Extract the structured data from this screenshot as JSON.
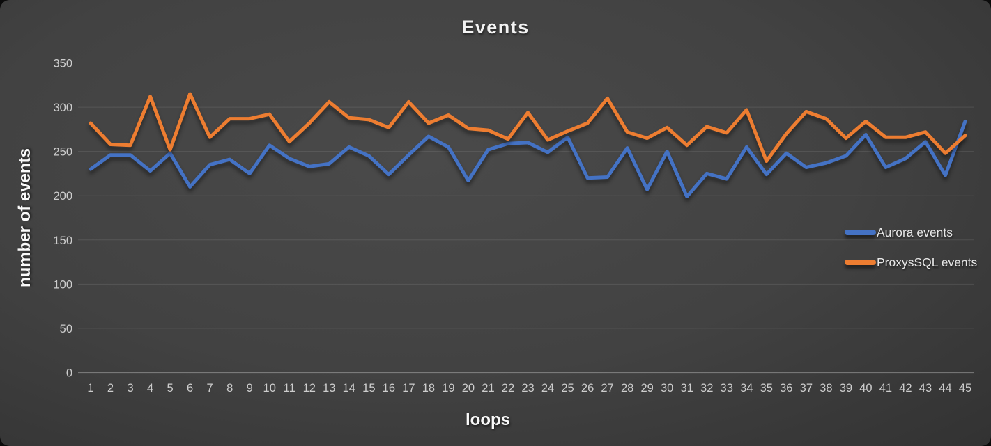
{
  "title": "Events",
  "axes": {
    "x_label": "loops",
    "y_label": "number of events",
    "y_ticks": [
      0,
      50,
      100,
      150,
      200,
      250,
      300,
      350
    ]
  },
  "legend": {
    "items": [
      {
        "label": "Aurora events",
        "color": "#4472C4"
      },
      {
        "label": "ProxysSQL events",
        "color": "#ED7D31"
      }
    ],
    "position": "right-middle"
  },
  "colors": {
    "aurora_blue": "#4472C4",
    "proxysql_orange": "#ED7D31",
    "background_center": "#4a4a4a",
    "background_edge": "#222222",
    "tick_text": "#cdcdcd",
    "title_text": "#f2f2f2"
  },
  "chart_data": {
    "type": "line",
    "title": "Events",
    "xlabel": "loops",
    "ylabel": "number of events",
    "ylim": [
      0,
      350
    ],
    "grid": true,
    "legend_position": "right-middle",
    "x": [
      1,
      2,
      3,
      4,
      5,
      6,
      7,
      8,
      9,
      10,
      11,
      12,
      13,
      14,
      15,
      16,
      17,
      18,
      19,
      20,
      21,
      22,
      23,
      24,
      25,
      26,
      27,
      28,
      29,
      30,
      31,
      32,
      33,
      34,
      35,
      36,
      37,
      38,
      39,
      40,
      41,
      42,
      43,
      44,
      45
    ],
    "series": [
      {
        "name": "Aurora events",
        "color": "#4472C4",
        "values": [
          230,
          246,
          246,
          228,
          248,
          210,
          235,
          241,
          225,
          257,
          242,
          233,
          236,
          255,
          245,
          224,
          246,
          267,
          255,
          217,
          252,
          259,
          260,
          249,
          266,
          220,
          221,
          254,
          207,
          250,
          199,
          225,
          219,
          255,
          224,
          248,
          232,
          237,
          245,
          269,
          232,
          242,
          261,
          223,
          284
        ]
      },
      {
        "name": "ProxysSQL events",
        "color": "#ED7D31",
        "values": [
          282,
          258,
          257,
          312,
          252,
          315,
          266,
          287,
          287,
          292,
          261,
          282,
          306,
          288,
          286,
          277,
          306,
          282,
          291,
          276,
          274,
          264,
          294,
          263,
          273,
          282,
          310,
          272,
          265,
          277,
          257,
          278,
          271,
          297,
          239,
          270,
          295,
          287,
          265,
          284,
          266,
          266,
          272,
          248,
          268
        ]
      }
    ]
  }
}
